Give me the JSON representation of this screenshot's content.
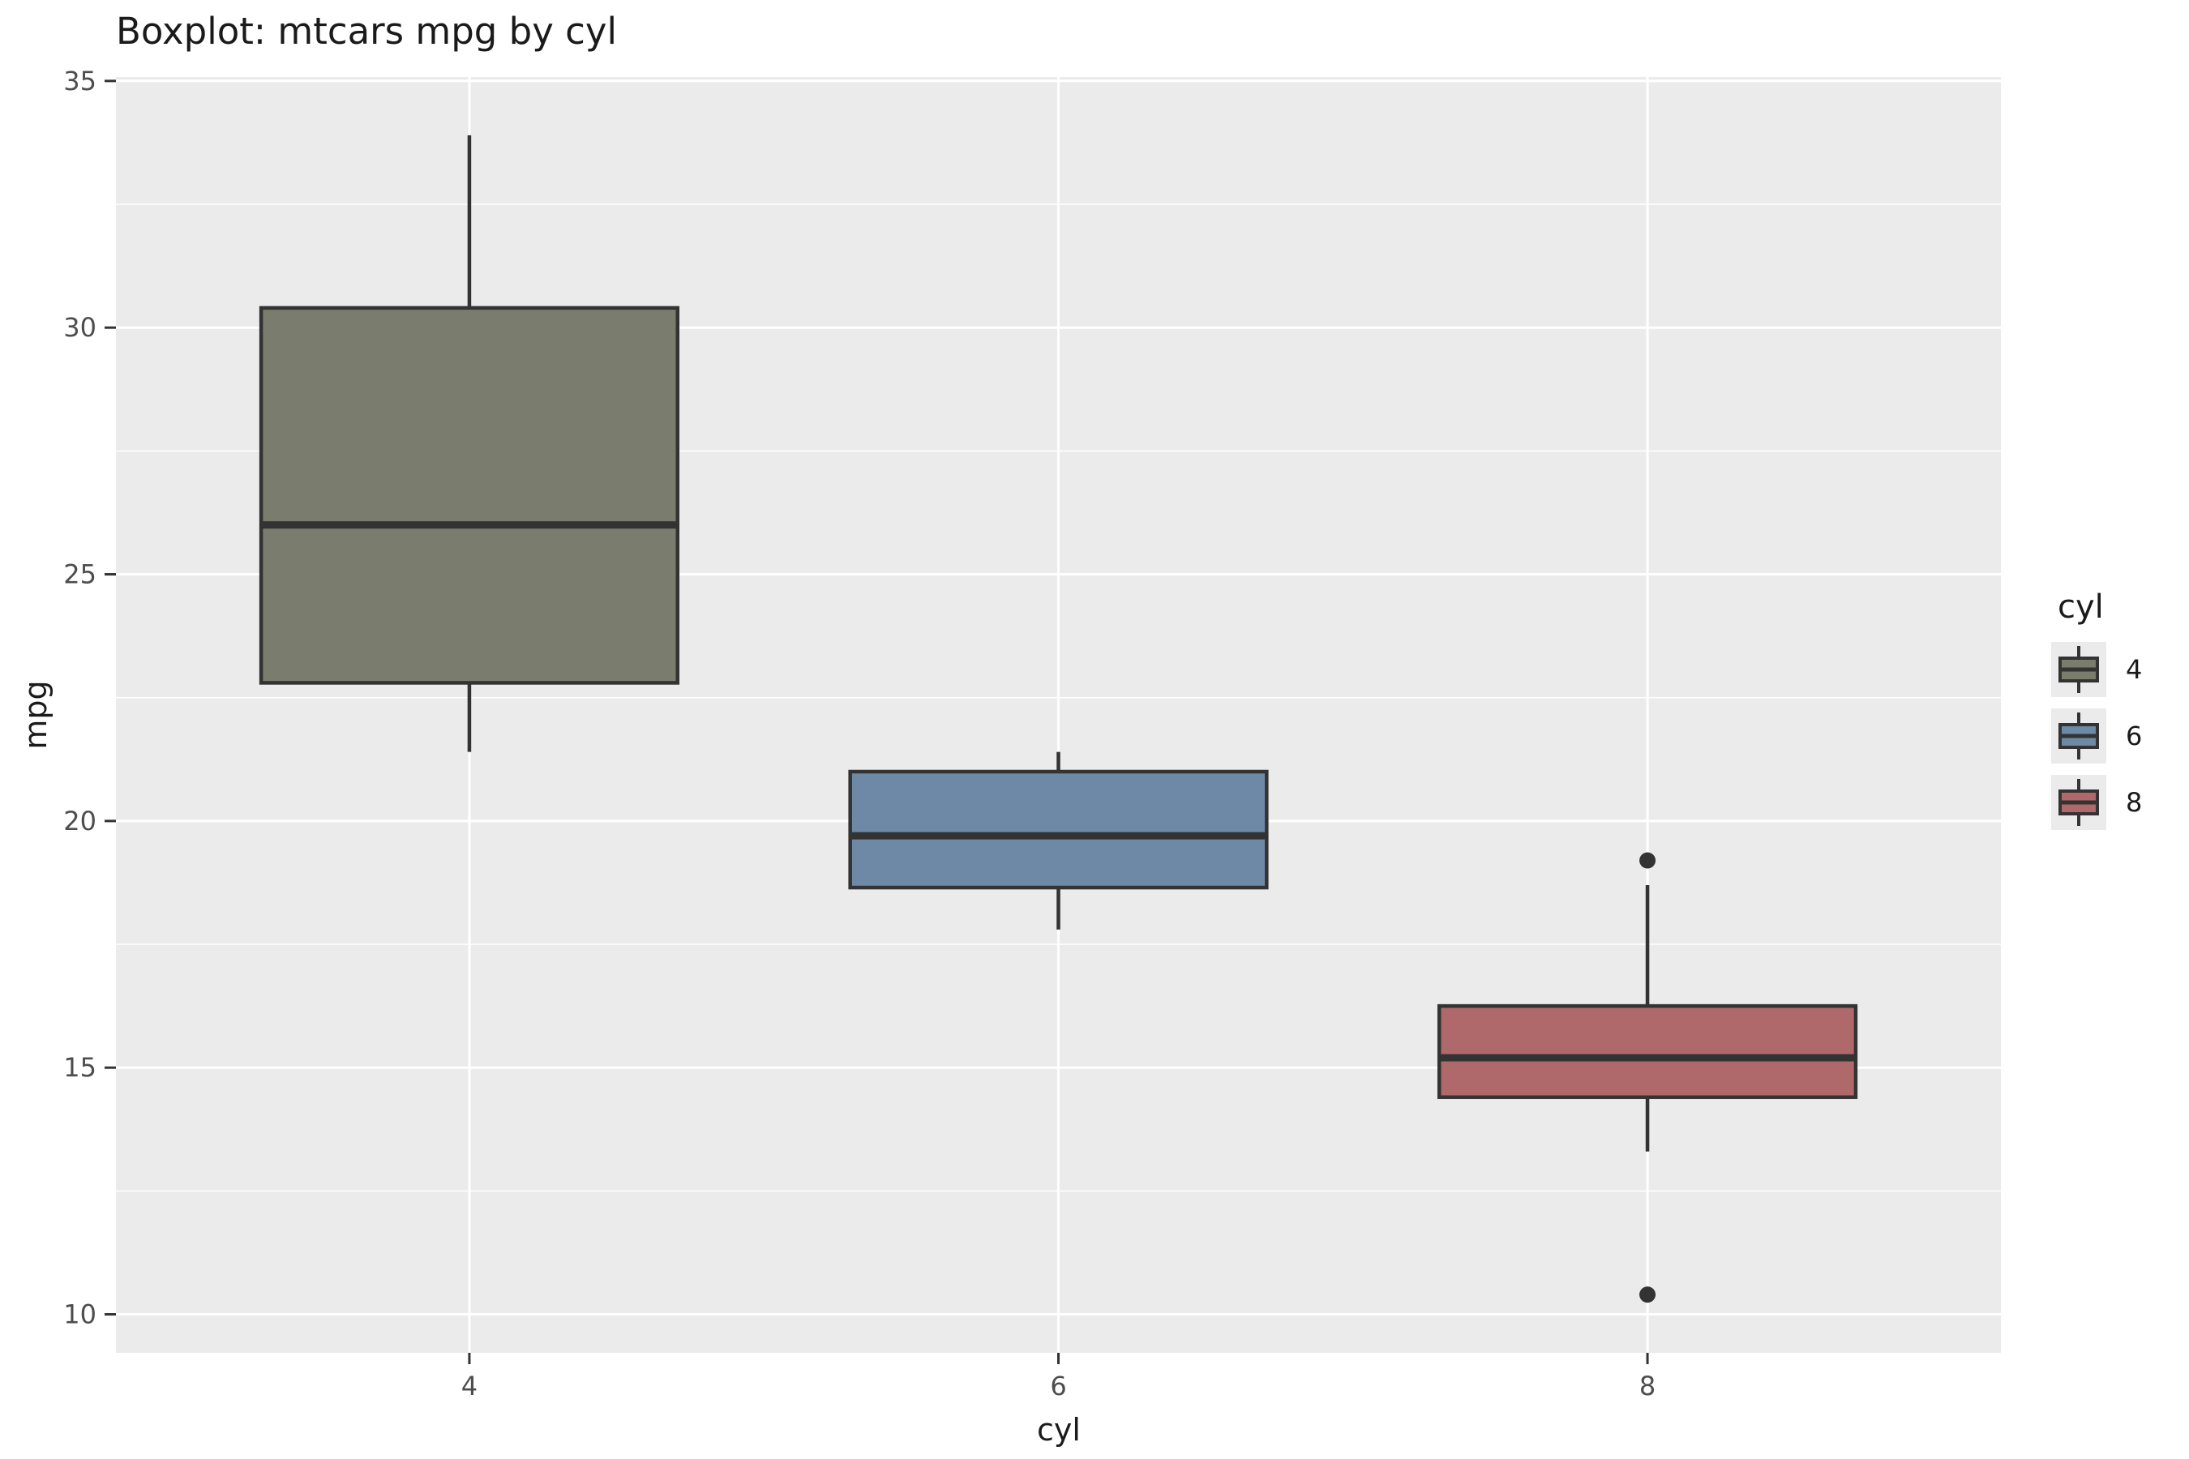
{
  "chart_data": {
    "type": "boxplot",
    "title": "Boxplot: mtcars mpg by cyl",
    "xlabel": "cyl",
    "ylabel": "mpg",
    "categories": [
      "4",
      "6",
      "8"
    ],
    "series": [
      {
        "name": "4",
        "fill": "#7A7C6E",
        "whisker_low": 21.4,
        "q1": 22.8,
        "median": 26.0,
        "q3": 30.4,
        "whisker_high": 33.9,
        "outliers": []
      },
      {
        "name": "6",
        "fill": "#6D89A5",
        "whisker_low": 17.8,
        "q1": 18.65,
        "median": 19.7,
        "q3": 21.0,
        "whisker_high": 21.4,
        "outliers": []
      },
      {
        "name": "8",
        "fill": "#B0696A",
        "whisker_low": 13.3,
        "q1": 14.4,
        "median": 15.2,
        "q3": 16.25,
        "whisker_high": 18.7,
        "outliers": [
          19.2,
          10.4
        ]
      }
    ],
    "y_ticks": [
      10,
      15,
      20,
      25,
      30,
      35
    ],
    "y_minor_gridlines": [
      12.5,
      17.5,
      22.5,
      27.5,
      32.5
    ],
    "x_tick_labels": [
      "4",
      "6",
      "8"
    ],
    "ylim": [
      9.22,
      35.08
    ],
    "grid": true,
    "legend": {
      "title": "cyl",
      "position": "right",
      "labels": [
        "4",
        "6",
        "8"
      ]
    }
  },
  "style": {
    "outer_bg": "#FFFFFF",
    "panel_bg": "#EBEBEB",
    "grid_color": "#FFFFFF",
    "box_stroke": "#333333",
    "tick_mark_color": "#333333",
    "tick_label_color": "#4D4D4D",
    "text_color": "#1A1A1A",
    "legend_key_bg": "#EBEBEB"
  }
}
